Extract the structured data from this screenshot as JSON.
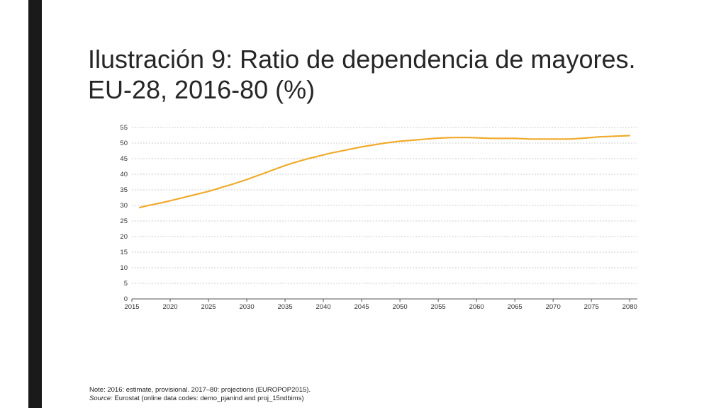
{
  "slide": {
    "title_line1": "Ilustración 9: Ratio de dependencia de mayores.",
    "title_line2": "EU-28, 2016-80 (%)"
  },
  "colors": {
    "series": "#f0ab2c",
    "grid": "#bdbdbd",
    "left_bar": "#1a1a1a"
  },
  "chart_data": {
    "type": "line",
    "title": "",
    "xlabel": "",
    "ylabel": "",
    "xlim": [
      2015,
      2081
    ],
    "ylim": [
      0,
      55
    ],
    "grid": true,
    "x_ticks": [
      2015,
      2020,
      2025,
      2030,
      2035,
      2040,
      2045,
      2050,
      2055,
      2060,
      2065,
      2070,
      2075,
      2080
    ],
    "y_ticks": [
      0,
      5,
      10,
      15,
      20,
      25,
      30,
      35,
      40,
      45,
      50,
      55
    ],
    "series": [
      {
        "color": "#f0ab2c",
        "x": [
          2016,
          2017,
          2018,
          2019,
          2020,
          2021,
          2022,
          2023,
          2024,
          2025,
          2026,
          2027,
          2028,
          2029,
          2030,
          2031,
          2032,
          2033,
          2034,
          2035,
          2036,
          2037,
          2038,
          2039,
          2040,
          2041,
          2042,
          2043,
          2044,
          2045,
          2046,
          2047,
          2048,
          2049,
          2050,
          2051,
          2052,
          2053,
          2054,
          2055,
          2056,
          2057,
          2058,
          2059,
          2060,
          2061,
          2062,
          2063,
          2064,
          2065,
          2066,
          2067,
          2068,
          2069,
          2070,
          2071,
          2072,
          2073,
          2074,
          2075,
          2076,
          2077,
          2078,
          2079,
          2080
        ],
        "values": [
          29.3,
          29.9,
          30.4,
          30.9,
          31.5,
          32.1,
          32.7,
          33.3,
          33.9,
          34.5,
          35.2,
          36.0,
          36.7,
          37.5,
          38.3,
          39.2,
          40.1,
          41.0,
          41.9,
          42.8,
          43.6,
          44.3,
          45.0,
          45.6,
          46.2,
          46.8,
          47.3,
          47.8,
          48.3,
          48.8,
          49.2,
          49.6,
          50.0,
          50.3,
          50.6,
          50.8,
          51.0,
          51.2,
          51.4,
          51.6,
          51.7,
          51.8,
          51.8,
          51.8,
          51.7,
          51.6,
          51.5,
          51.5,
          51.5,
          51.5,
          51.4,
          51.3,
          51.3,
          51.3,
          51.3,
          51.3,
          51.3,
          51.4,
          51.6,
          51.8,
          52.0,
          52.1,
          52.2,
          52.3,
          52.4
        ]
      }
    ]
  },
  "footnotes": {
    "note": "Note: 2016: estimate, provisional. 2017–80: projections (EUROPOP2015).",
    "source_label": "Source:",
    "source_text": " Eurostat (online data codes: demo_pjanind and proj_15ndbims)"
  }
}
